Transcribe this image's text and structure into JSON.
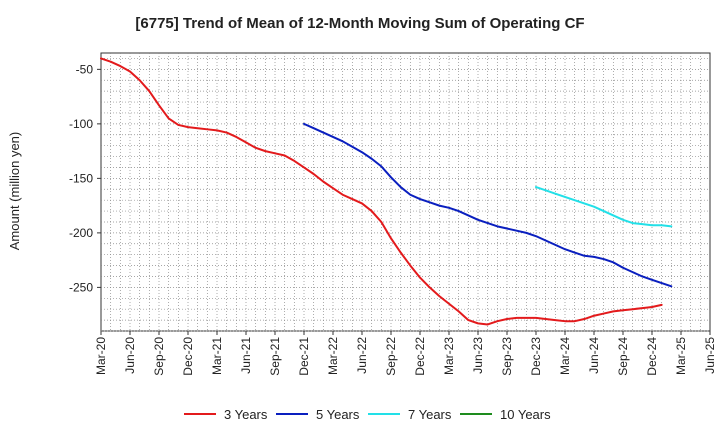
{
  "chart_data": {
    "type": "line",
    "title": "[6775]  Trend of Mean of 12-Month Moving Sum of Operating CF",
    "ylabel": "Amount (million yen)",
    "xlabel": "",
    "ylim": [
      -290,
      -35
    ],
    "y_ticks": [
      -50,
      -100,
      -150,
      -200,
      -250
    ],
    "y_tick_labels": [
      "-50",
      "-100",
      "-150",
      "-200",
      "-250"
    ],
    "x_tick_labels": [
      "Mar-20",
      "Jun-20",
      "Sep-20",
      "Dec-20",
      "Mar-21",
      "Jun-21",
      "Sep-21",
      "Dec-21",
      "Mar-22",
      "Jun-22",
      "Sep-22",
      "Dec-22",
      "Mar-23",
      "Jun-23",
      "Sep-23",
      "Dec-23",
      "Mar-24",
      "Jun-24",
      "Sep-24",
      "Dec-24",
      "Mar-25",
      "Jun-25"
    ],
    "x_start": "Mar-20",
    "x_months_total": 63,
    "grid": true,
    "legend_position": "bottom",
    "series": [
      {
        "name": "3 Years",
        "color": "#e31a1c",
        "start_month_index": 0,
        "values": [
          -40,
          -43,
          -47,
          -52,
          -60,
          -70,
          -83,
          -95,
          -101,
          -103,
          -104,
          -105,
          -106,
          -108,
          -112,
          -117,
          -122,
          -125,
          -127,
          -129,
          -134,
          -140,
          -146,
          -153,
          -159,
          -165,
          -169,
          -173,
          -180,
          -190,
          -205,
          -218,
          -230,
          -241,
          -250,
          -258,
          -265,
          -272,
          -280,
          -283,
          -284,
          -281,
          -279,
          -278,
          -278,
          -278,
          -279,
          -280,
          -281,
          -281,
          -279,
          -276,
          -274,
          -272,
          -271,
          -270,
          -269,
          -268,
          -266
        ]
      },
      {
        "name": "5 Years",
        "color": "#0a1fbf",
        "start_month_index": 21,
        "values": [
          -100,
          -104,
          -108,
          -112,
          -116,
          -121,
          -126,
          -132,
          -139,
          -149,
          -158,
          -165,
          -169,
          -172,
          -175,
          -177,
          -180,
          -184,
          -188,
          -191,
          -194,
          -196,
          -198,
          -200,
          -203,
          -207,
          -211,
          -215,
          -218,
          -221,
          -222,
          -224,
          -227,
          -232,
          -236,
          -240,
          -243,
          -246,
          -249
        ]
      },
      {
        "name": "7 Years",
        "color": "#22e0e8",
        "start_month_index": 45,
        "values": [
          -158,
          -161,
          -164,
          -167,
          -170,
          -173,
          -176,
          -180,
          -184,
          -188,
          -191,
          -192,
          -193,
          -193,
          -194
        ]
      },
      {
        "name": "10 Years",
        "color": "#1e8c1e",
        "start_month_index": null,
        "values": []
      }
    ]
  }
}
